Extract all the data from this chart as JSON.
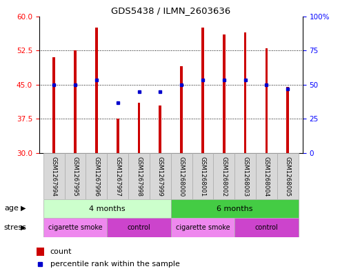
{
  "title": "GDS5438 / ILMN_2603636",
  "samples": [
    "GSM1267994",
    "GSM1267995",
    "GSM1267996",
    "GSM1267997",
    "GSM1267998",
    "GSM1267999",
    "GSM1268000",
    "GSM1268001",
    "GSM1268002",
    "GSM1268003",
    "GSM1268004",
    "GSM1268005"
  ],
  "counts": [
    51.0,
    52.5,
    57.5,
    37.5,
    41.0,
    40.5,
    49.0,
    57.5,
    56.0,
    56.5,
    53.0,
    44.5
  ],
  "percentile_vals": [
    45.0,
    45.0,
    46.0,
    41.0,
    43.5,
    43.5,
    45.0,
    46.0,
    46.0,
    46.0,
    45.0,
    44.0
  ],
  "ylim_left": [
    30,
    60
  ],
  "ylim_right": [
    0,
    100
  ],
  "yticks_left": [
    30,
    37.5,
    45,
    52.5,
    60
  ],
  "yticks_right": [
    0,
    25,
    50,
    75,
    100
  ],
  "bar_color": "#cc0000",
  "percentile_color": "#0000cc",
  "age_groups": [
    {
      "label": "4 months",
      "start": 0,
      "end": 6,
      "color": "#ccffcc"
    },
    {
      "label": "6 months",
      "start": 6,
      "end": 12,
      "color": "#44cc44"
    }
  ],
  "stress_groups": [
    {
      "label": "cigarette smoke",
      "start": 0,
      "end": 3,
      "color": "#ee88ee"
    },
    {
      "label": "control",
      "start": 3,
      "end": 6,
      "color": "#cc44cc"
    },
    {
      "label": "cigarette smoke",
      "start": 6,
      "end": 9,
      "color": "#ee88ee"
    },
    {
      "label": "control",
      "start": 9,
      "end": 12,
      "color": "#cc44cc"
    }
  ],
  "legend_count_color": "#cc0000",
  "legend_percentile_color": "#0000cc",
  "background_color": "white",
  "bar_width": 0.12
}
